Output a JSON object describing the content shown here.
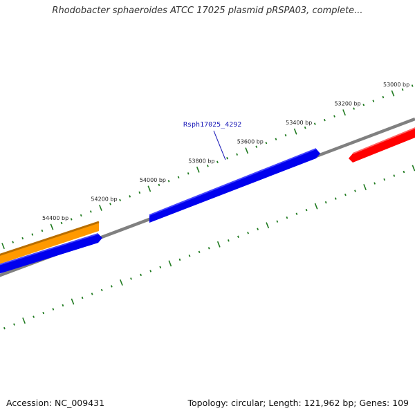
{
  "title": "Rhodobacter sphaeroides ATCC 17025 plasmid pRSPA03, complete...",
  "accession_text": "Accession: NC_009431",
  "stats_text": "Topology: circular; Length: 121,962 bp; Genes: 109",
  "scale_labels": [
    {
      "bp": 53000,
      "text": "53000 bp"
    },
    {
      "bp": 53200,
      "text": "53200 bp"
    },
    {
      "bp": 53400,
      "text": "53400 bp"
    },
    {
      "bp": 53600,
      "text": "53600 bp"
    },
    {
      "bp": 53800,
      "text": "53800 bp"
    },
    {
      "bp": 54000,
      "text": "54000 bp"
    },
    {
      "bp": 54200,
      "text": "54200 bp"
    },
    {
      "bp": 54400,
      "text": "54400 bp"
    }
  ],
  "gene_label": "Rsph17025_4292",
  "features": [
    {
      "name": "orange-gene",
      "color": "#ff9900",
      "edge": "#b86e00"
    },
    {
      "name": "blue-gene-lower",
      "color": "#0000ee",
      "edge": "#3333ff"
    },
    {
      "name": "blue-gene-upper",
      "color": "#0000ee",
      "edge": "#3333ff"
    },
    {
      "name": "red-gene",
      "color": "#ff0000",
      "edge": "#ff5555"
    }
  ],
  "colors": {
    "backbone": "#808080",
    "ticks": "#1f7a1f",
    "gene_label": "#1a1ab8"
  }
}
